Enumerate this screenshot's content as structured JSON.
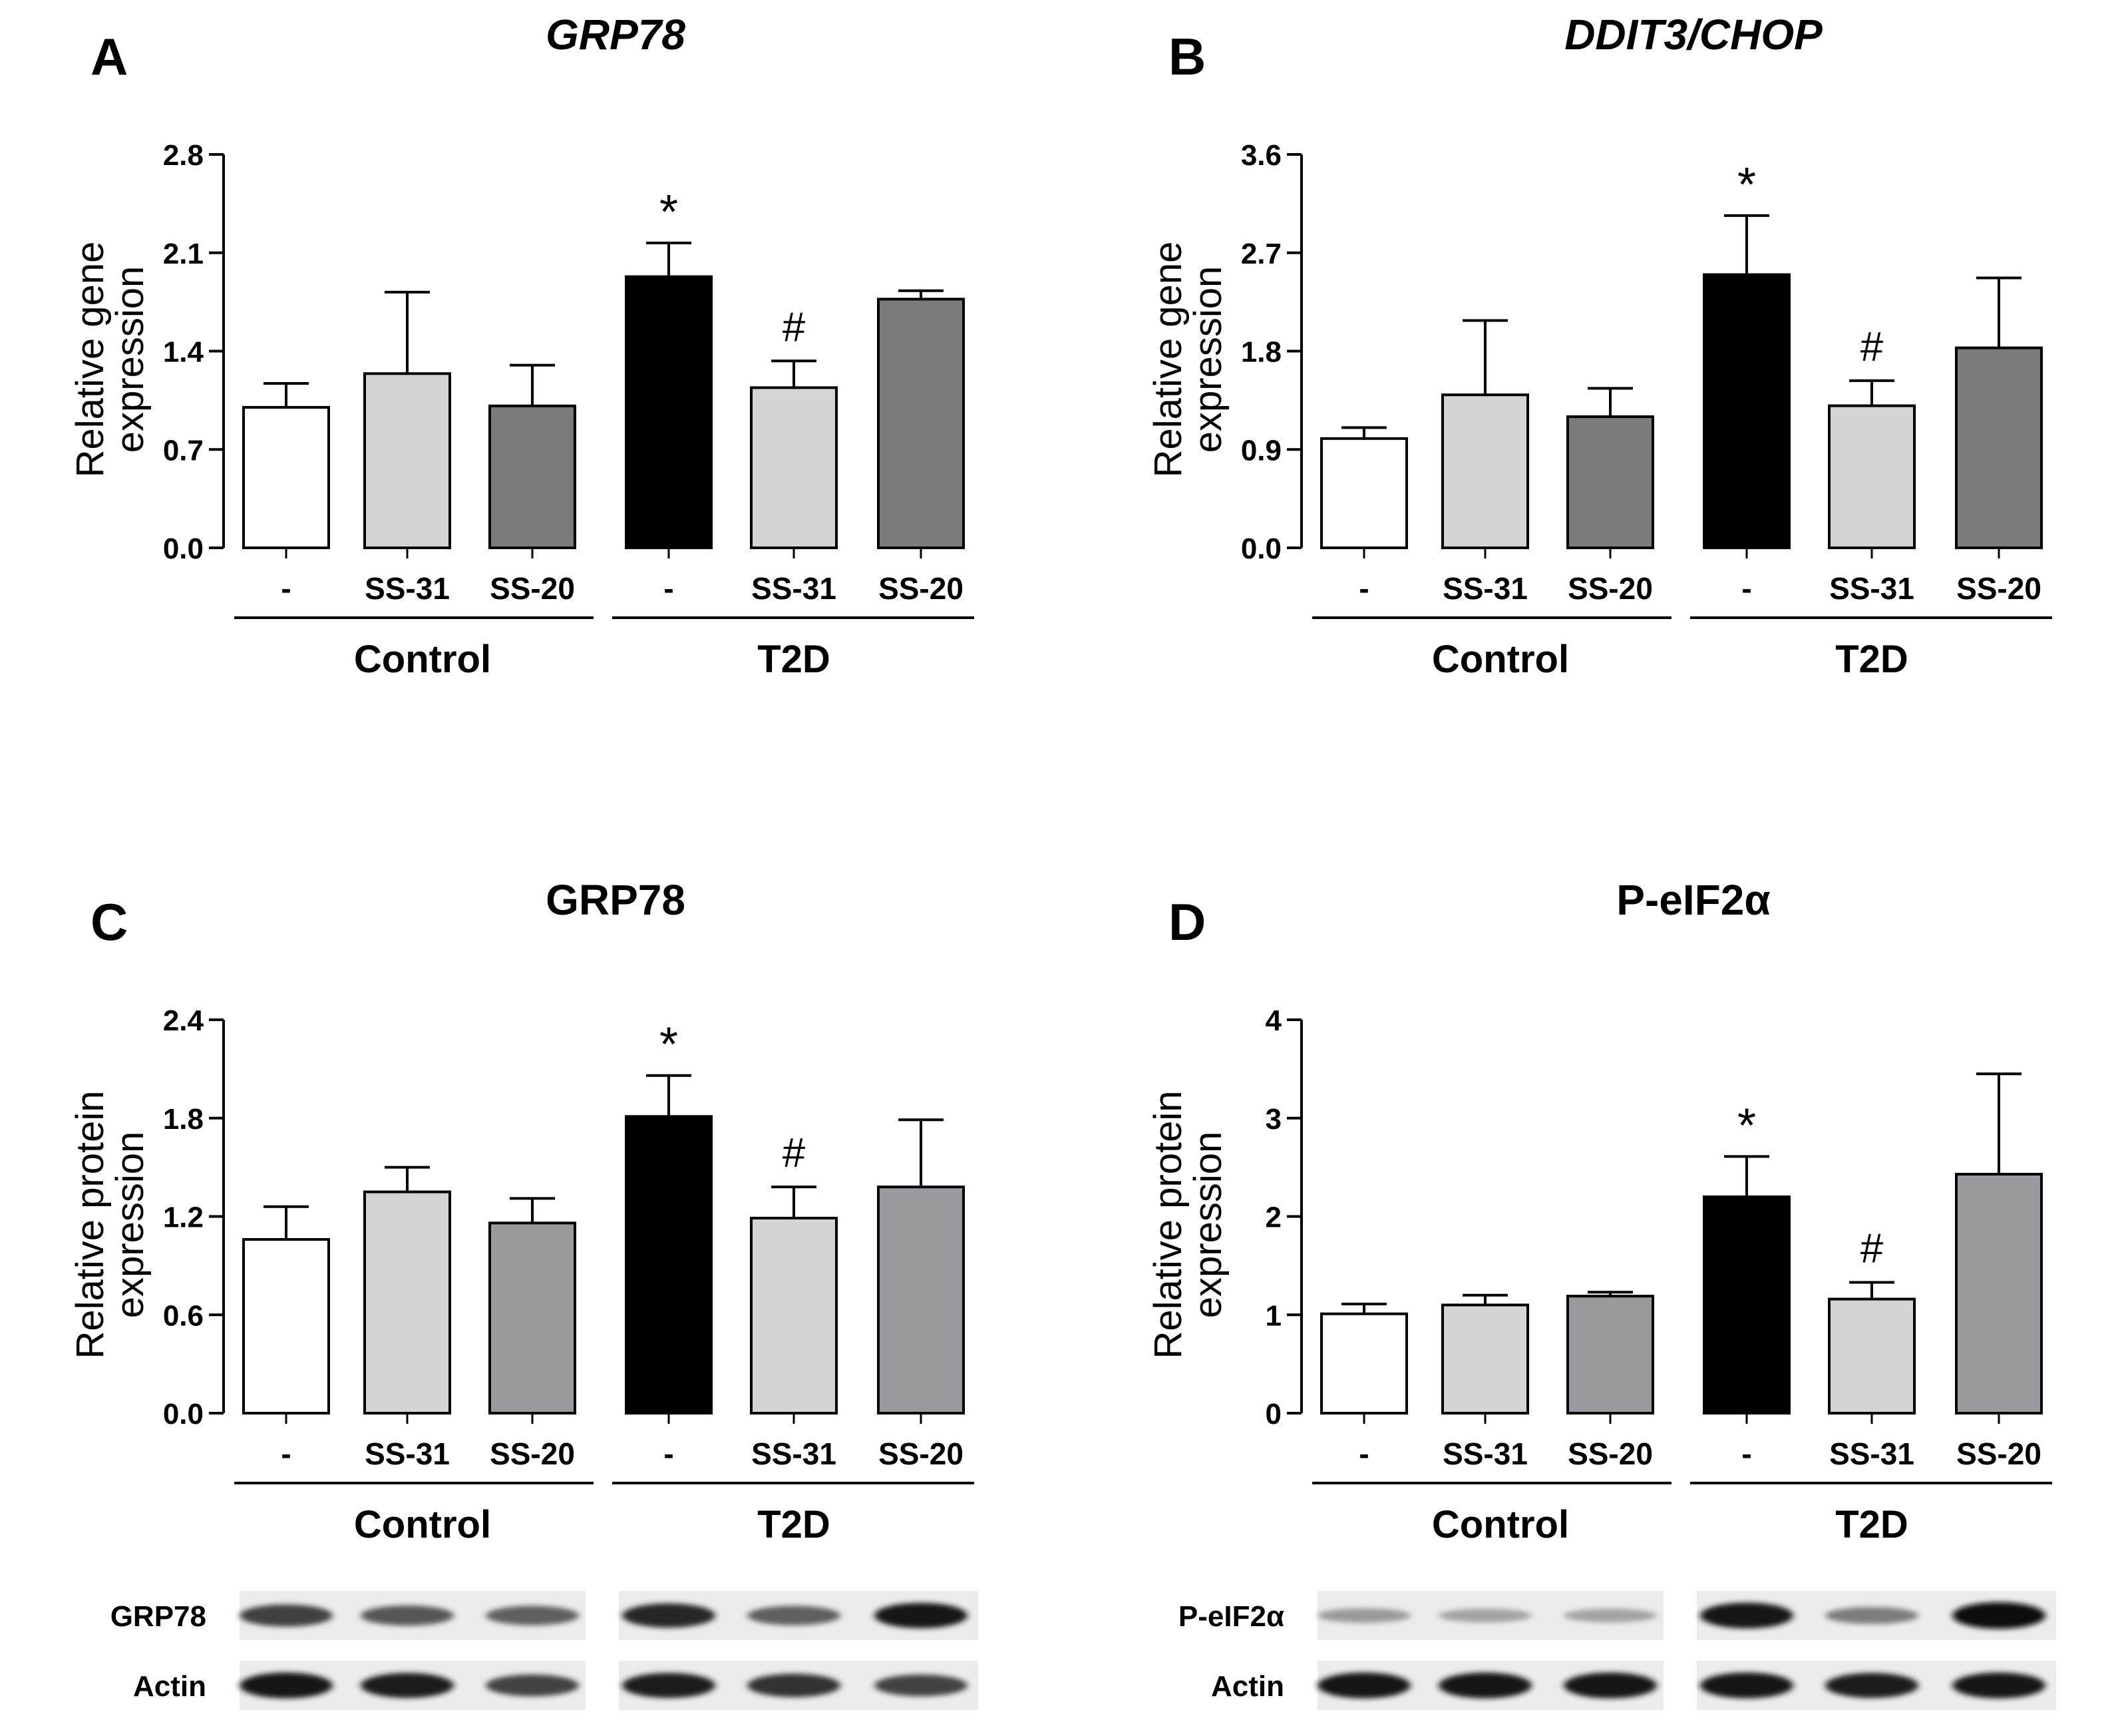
{
  "panels": [
    {
      "id": "A",
      "letter": "A",
      "chart_data": {
        "type": "bar",
        "title": "GRP78",
        "title_italic": true,
        "ylabel": [
          "Relative gene",
          "expression"
        ],
        "ylim": [
          0,
          2.8
        ],
        "yticks": [
          "0.0",
          "0.7",
          "1.4",
          "2.1",
          "2.8"
        ],
        "categories": [
          "-",
          "SS-31",
          "SS-20",
          "-",
          "SS-31",
          "SS-20"
        ],
        "groups": [
          "Control",
          "T2D"
        ],
        "values": [
          1.0,
          1.24,
          1.01,
          1.93,
          1.14,
          1.77
        ],
        "errors": [
          0.17,
          0.58,
          0.29,
          0.24,
          0.19,
          0.06
        ],
        "annotations": [
          "",
          "",
          "",
          "*",
          "#",
          ""
        ],
        "colors": [
          "#ffffff",
          "#d4d4d4",
          "#7b7b7b",
          "#000000",
          "#d4d4d4",
          "#7b7b7b"
        ]
      }
    },
    {
      "id": "B",
      "letter": "B",
      "chart_data": {
        "type": "bar",
        "title": "DDIT3/CHOP",
        "title_italic": true,
        "ylabel": [
          "Relative gene",
          "expression"
        ],
        "ylim": [
          0,
          3.6
        ],
        "yticks": [
          "0.0",
          "0.9",
          "1.8",
          "2.7",
          "3.6"
        ],
        "categories": [
          "-",
          "SS-31",
          "SS-20",
          "-",
          "SS-31",
          "SS-20"
        ],
        "groups": [
          "Control",
          "T2D"
        ],
        "values": [
          1.0,
          1.4,
          1.2,
          2.5,
          1.3,
          1.83
        ],
        "errors": [
          0.1,
          0.68,
          0.26,
          0.54,
          0.23,
          0.64
        ],
        "annotations": [
          "",
          "",
          "",
          "*",
          "#",
          ""
        ],
        "colors": [
          "#ffffff",
          "#d4d4d4",
          "#7b7b7b",
          "#000000",
          "#d4d4d4",
          "#7b7b7b"
        ]
      }
    },
    {
      "id": "C",
      "letter": "C",
      "chart_data": {
        "type": "bar",
        "title": "GRP78",
        "title_italic": false,
        "ylabel": [
          "Relative protein",
          "expression"
        ],
        "ylim": [
          0,
          2.4
        ],
        "yticks": [
          "0.0",
          "0.6",
          "1.2",
          "1.8",
          "2.4"
        ],
        "categories": [
          "-",
          "SS-31",
          "SS-20",
          "-",
          "SS-31",
          "SS-20"
        ],
        "groups": [
          "Control",
          "T2D"
        ],
        "values": [
          1.06,
          1.35,
          1.16,
          1.81,
          1.19,
          1.38
        ],
        "errors": [
          0.2,
          0.15,
          0.15,
          0.25,
          0.19,
          0.41
        ],
        "annotations": [
          "",
          "",
          "",
          "*",
          "#",
          ""
        ],
        "colors": [
          "#ffffff",
          "#d4d4d4",
          "#9a9a9e",
          "#000000",
          "#d4d4d4",
          "#9a9a9e"
        ]
      },
      "blot": {
        "rows": [
          {
            "label": "GRP78",
            "bands": [
              0.72,
              0.6,
              0.55,
              0.85,
              0.55,
              0.92
            ]
          },
          {
            "label": "Actin",
            "bands": [
              0.95,
              0.9,
              0.7,
              0.9,
              0.8,
              0.7
            ]
          }
        ]
      }
    },
    {
      "id": "D",
      "letter": "D",
      "chart_data": {
        "type": "bar",
        "title": "P-eIF2α",
        "title_italic": false,
        "ylabel": [
          "Relative protein",
          "expression"
        ],
        "ylim": [
          0,
          4
        ],
        "yticks": [
          "0",
          "1",
          "2",
          "3",
          "4"
        ],
        "categories": [
          "-",
          "SS-31",
          "SS-20",
          "-",
          "SS-31",
          "SS-20"
        ],
        "groups": [
          "Control",
          "T2D"
        ],
        "values": [
          1.01,
          1.1,
          1.19,
          2.2,
          1.16,
          2.43
        ],
        "errors": [
          0.1,
          0.1,
          0.04,
          0.41,
          0.17,
          1.02
        ],
        "annotations": [
          "",
          "",
          "",
          "*",
          "#",
          ""
        ],
        "colors": [
          "#ffffff",
          "#d4d4d4",
          "#9a9a9e",
          "#000000",
          "#d4d4d4",
          "#9a9a9e"
        ]
      },
      "blot": {
        "rows": [
          {
            "label": "P-eIF2α",
            "bands": [
              0.25,
              0.2,
              0.2,
              0.95,
              0.4,
              1.0
            ]
          },
          {
            "label": "Actin",
            "bands": [
              0.95,
              0.95,
              0.95,
              0.95,
              0.9,
              0.95
            ]
          }
        ]
      }
    }
  ]
}
